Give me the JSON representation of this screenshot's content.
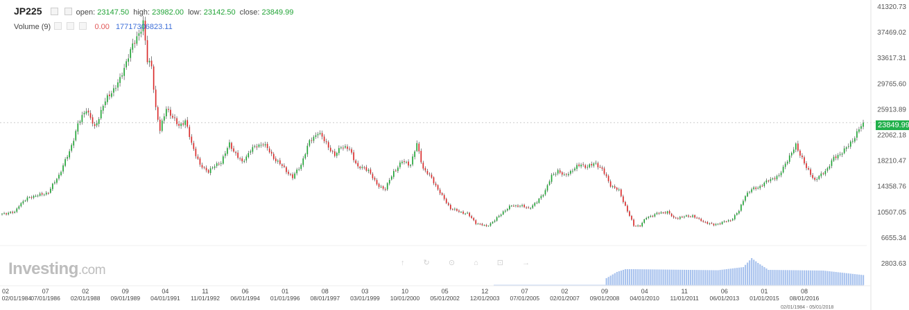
{
  "legend": {
    "symbol": "JP225",
    "open_label": "open:",
    "open": "23147.50",
    "high_label": "high:",
    "high": "23982.00",
    "low_label": "low:",
    "low": "23142.50",
    "close_label": "close:",
    "close": "23849.99",
    "volume_label": "Volume (9)",
    "volume_red": "0.00",
    "volume_blue": "17717306823.11"
  },
  "watermark": {
    "brand": "Investing",
    "suffix": ".com"
  },
  "toolbar_glyphs": "↑ ↻ ⊙ ⌂ ⊡ →",
  "current_price_label": "23849.99",
  "date_range_text": "02/01/1984 - 05/01/2018",
  "colors": {
    "up": "#21a336",
    "down": "#d92b2b",
    "volume": "#a9c3ee",
    "current": "#21b04b"
  },
  "chart_data": {
    "type": "candlestick",
    "title": "",
    "ylim": [
      6655.34,
      41320.73
    ],
    "grid": false,
    "y_ticks": [
      "41320.73",
      "37469.02",
      "33617.31",
      "29765.60",
      "25913.89",
      "22062.18",
      "18210.47",
      "14358.76",
      "10507.05",
      "6655.34",
      "2803.63"
    ],
    "x_months": [
      "02",
      "07",
      "02",
      "09",
      "04",
      "11",
      "06",
      "01",
      "08",
      "03",
      "10",
      "05",
      "12",
      "07",
      "02",
      "09",
      "04",
      "11",
      "06",
      "01",
      "08"
    ],
    "x_dates": [
      "02/01/1984",
      "07/01/1986",
      "02/01/1988",
      "09/01/1989",
      "04/01/1991",
      "11/01/1992",
      "06/01/1994",
      "01/01/1996",
      "08/01/1997",
      "03/01/1999",
      "10/01/2000",
      "05/01/2002",
      "12/01/2003",
      "07/01/2005",
      "02/01/2007",
      "09/01/2008",
      "04/01/2010",
      "11/01/2011",
      "06/01/2013",
      "01/01/2015",
      "08/01/2016"
    ],
    "anchors": [
      [
        0,
        10200
      ],
      [
        6,
        10400
      ],
      [
        8,
        11500
      ],
      [
        13,
        12700
      ],
      [
        18,
        13000
      ],
      [
        22,
        13400
      ],
      [
        27,
        16000
      ],
      [
        32,
        19500
      ],
      [
        36,
        23500
      ],
      [
        40,
        26000
      ],
      [
        44,
        23000
      ],
      [
        48,
        26500
      ],
      [
        52,
        28500
      ],
      [
        56,
        30200
      ],
      [
        60,
        34000
      ],
      [
        64,
        36600
      ],
      [
        67,
        38900
      ],
      [
        69,
        33000
      ],
      [
        71,
        32500
      ],
      [
        73,
        26000
      ],
      [
        75,
        22600
      ],
      [
        78,
        26200
      ],
      [
        81,
        24500
      ],
      [
        84,
        23500
      ],
      [
        87,
        24000
      ],
      [
        90,
        20800
      ],
      [
        94,
        17400
      ],
      [
        98,
        16600
      ],
      [
        104,
        18000
      ],
      [
        108,
        20600
      ],
      [
        114,
        17800
      ],
      [
        118,
        19800
      ],
      [
        124,
        20800
      ],
      [
        129,
        18600
      ],
      [
        134,
        17000
      ],
      [
        138,
        15600
      ],
      [
        142,
        17600
      ],
      [
        146,
        21000
      ],
      [
        150,
        22400
      ],
      [
        154,
        20800
      ],
      [
        158,
        18800
      ],
      [
        161,
        20400
      ],
      [
        165,
        19800
      ],
      [
        169,
        17200
      ],
      [
        174,
        16800
      ],
      [
        178,
        14500
      ],
      [
        182,
        13900
      ],
      [
        186,
        16500
      ],
      [
        190,
        18000
      ],
      [
        194,
        17600
      ],
      [
        197,
        20600
      ],
      [
        200,
        17000
      ],
      [
        204,
        15500
      ],
      [
        209,
        12800
      ],
      [
        213,
        11000
      ],
      [
        217,
        10500
      ],
      [
        221,
        10200
      ],
      [
        225,
        8800
      ],
      [
        230,
        8300
      ],
      [
        234,
        9200
      ],
      [
        238,
        10500
      ],
      [
        242,
        11400
      ],
      [
        246,
        11400
      ],
      [
        250,
        11000
      ],
      [
        254,
        11900
      ],
      [
        258,
        13700
      ],
      [
        261,
        15800
      ],
      [
        264,
        16700
      ],
      [
        267,
        15800
      ],
      [
        271,
        16800
      ],
      [
        275,
        17600
      ],
      [
        278,
        17200
      ],
      [
        282,
        17800
      ],
      [
        285,
        16800
      ],
      [
        289,
        14500
      ],
      [
        293,
        13600
      ],
      [
        297,
        10600
      ],
      [
        300,
        8400
      ],
      [
        303,
        8400
      ],
      [
        306,
        9600
      ],
      [
        311,
        10200
      ],
      [
        316,
        10500
      ],
      [
        319,
        9500
      ],
      [
        323,
        9700
      ],
      [
        328,
        9900
      ],
      [
        331,
        9300
      ],
      [
        334,
        8900
      ],
      [
        338,
        8500
      ],
      [
        342,
        8900
      ],
      [
        346,
        9200
      ],
      [
        350,
        10600
      ],
      [
        353,
        13000
      ],
      [
        356,
        13800
      ],
      [
        360,
        14300
      ],
      [
        365,
        15400
      ],
      [
        369,
        15800
      ],
      [
        372,
        17800
      ],
      [
        375,
        19200
      ],
      [
        377,
        20500
      ],
      [
        380,
        18500
      ],
      [
        382,
        17000
      ],
      [
        384,
        16200
      ],
      [
        386,
        15200
      ],
      [
        389,
        16000
      ],
      [
        392,
        17000
      ],
      [
        395,
        18500
      ],
      [
        398,
        19200
      ],
      [
        401,
        20000
      ],
      [
        404,
        21300
      ],
      [
        407,
        22800
      ],
      [
        409,
        23850
      ]
    ],
    "volume_profile": [
      [
        0,
        0
      ],
      [
        286,
        0
      ],
      [
        287,
        1.0
      ],
      [
        292,
        1.9
      ],
      [
        296,
        2.3
      ],
      [
        300,
        2.3
      ],
      [
        340,
        2.15
      ],
      [
        352,
        2.6
      ],
      [
        356,
        3.9
      ],
      [
        359,
        3.2
      ],
      [
        364,
        2.2
      ],
      [
        390,
        2.1
      ],
      [
        409,
        1.45
      ]
    ],
    "current_price": 23849.99
  }
}
